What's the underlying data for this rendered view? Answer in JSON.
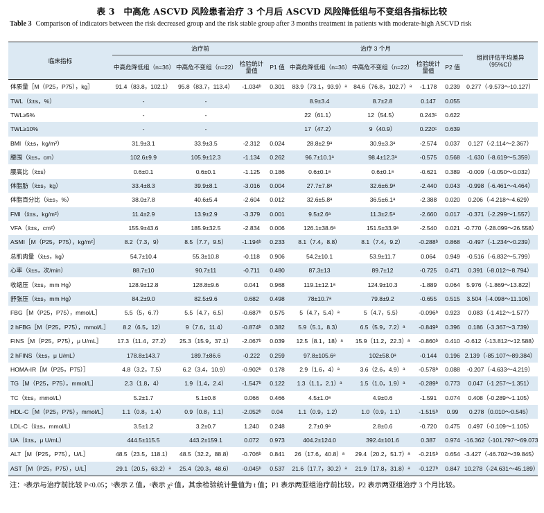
{
  "title_cn": "表 3　中高危 ASCVD 风险患者治疗 3 个月后 ASCVD 风险降低组与不变组各指标比较",
  "title_en_label": "Table 3",
  "title_en_text": "Comparison of indicators between the risk decreased group and the risk stable group after 3 months treatment in patients with moderate-high ASCVD risk",
  "header": {
    "indicator": "临床指标",
    "before": "治疗前",
    "after": "治疗 3 个月",
    "between": "组间评估平均差异（95%CI）",
    "dec_group": "中高危降低组（n=36）",
    "stable_group": "中高危不变组（n=22）",
    "test_stat": "检验统计量值",
    "p1": "P1 值",
    "p2": "P2 值"
  },
  "rows": [
    {
      "ind": "体质量［M（P25，P75），kg］",
      "b1": "91.4（83.8，102.1）",
      "b2": "95.8（83.7，113.4）",
      "bs": "-1.034ᵇ",
      "p1": "0.301",
      "a1": "83.9（73.1，93.9）ᵃ",
      "a2": "84.6（76.8，102.7）ᵃ",
      "as": "-1.178",
      "p2": "0.239",
      "ci": "0.277（-9.573～10.127）"
    },
    {
      "ind": "TWL（x̄±s，%）",
      "b1": "-",
      "b2": "-",
      "bs": "",
      "p1": "",
      "a1": "8.9±3.4",
      "a2": "8.7±2.8",
      "as": "0.147",
      "p2": "0.055",
      "ci": ""
    },
    {
      "ind": "TWL≥5%",
      "b1": "-",
      "b2": "-",
      "bs": "",
      "p1": "",
      "a1": "22（61.1）",
      "a2": "12（54.5）",
      "as": "0.243ᶜ",
      "p2": "0.622",
      "ci": ""
    },
    {
      "ind": "TWL≥10%",
      "b1": "-",
      "b2": "-",
      "bs": "",
      "p1": "",
      "a1": "17（47.2）",
      "a2": "9（40.9）",
      "as": "0.220ᶜ",
      "p2": "0.639",
      "ci": ""
    },
    {
      "ind": "BMI（x̄±s，kg/m²）",
      "b1": "31.9±3.1",
      "b2": "33.9±3.5",
      "bs": "-2.312",
      "p1": "0.024",
      "a1": "28.8±2.9ᵃ",
      "a2": "30.9±3.3ᵃ",
      "as": "-2.574",
      "p2": "0.037",
      "ci": "0.127（-2.114～2.367）"
    },
    {
      "ind": "腰围（x̄±s，cm）",
      "b1": "102.6±9.9",
      "b2": "105.9±12.3",
      "bs": "-1.134",
      "p1": "0.262",
      "a1": "96.7±10.1ᵃ",
      "a2": "98.4±12.3ᵃ",
      "as": "-0.575",
      "p2": "0.568",
      "ci": "-1.630（-8.619～5.359）"
    },
    {
      "ind": "腰高比（x̄±s）",
      "b1": "0.6±0.1",
      "b2": "0.6±0.1",
      "bs": "-1.125",
      "p1": "0.186",
      "a1": "0.6±0.1ᵃ",
      "a2": "0.6±0.1ᵃ",
      "as": "-0.621",
      "p2": "0.389",
      "ci": "-0.009（-0.050～0.032）"
    },
    {
      "ind": "体脂肪（x̄±s，kg）",
      "b1": "33.4±8.3",
      "b2": "39.9±8.1",
      "bs": "-3.016",
      "p1": "0.004",
      "a1": "27.7±7.8ᵃ",
      "a2": "32.6±6.9ᵃ",
      "as": "-2.440",
      "p2": "0.043",
      "ci": "-0.998（-6.461～4.464）"
    },
    {
      "ind": "体脂百分比（x̄±s，%）",
      "b1": "38.0±7.8",
      "b2": "40.6±5.4",
      "bs": "-2.604",
      "p1": "0.012",
      "a1": "32.6±5.8ᵃ",
      "a2": "36.5±6.1ᵃ",
      "as": "-2.388",
      "p2": "0.020",
      "ci": "0.206（-4.218～4.629）"
    },
    {
      "ind": "FMI（x̄±s，kg/m²）",
      "b1": "11.4±2.9",
      "b2": "13.9±2.9",
      "bs": "-3.379",
      "p1": "0.001",
      "a1": "9.5±2.6ᵃ",
      "a2": "11.3±2.5ᵃ",
      "as": "-2.660",
      "p2": "0.017",
      "ci": "-0.371（-2.299～1.557）"
    },
    {
      "ind": "VFA（x̄±s，cm²）",
      "b1": "155.9±43.6",
      "b2": "185.9±32.5",
      "bs": "-2.834",
      "p1": "0.006",
      "a1": "126.1±38.6ᵃ",
      "a2": "151.5±33.9ᵃ",
      "as": "-2.540",
      "p2": "0.021",
      "ci": "-0.770（-28.099～26.558）"
    },
    {
      "ind": "ASMI［M（P25，P75），kg/m²］",
      "b1": "8.2（7.3，9）",
      "b2": "8.5（7.7，9.5）",
      "bs": "-1.194ᵇ",
      "p1": "0.233",
      "a1": "8.1（7.4，8.8）",
      "a2": "8.1（7.4，9.2）",
      "as": "-0.288ᵇ",
      "p2": "0.868",
      "ci": "-0.497（-1.234～0.239）"
    },
    {
      "ind": "总肌肉量（x̄±s，kg）",
      "b1": "54.7±10.4",
      "b2": "55.3±10.8",
      "bs": "-0.118",
      "p1": "0.906",
      "a1": "54.2±10.1",
      "a2": "53.9±11.7",
      "as": "0.064",
      "p2": "0.949",
      "ci": "-0.516（-6.832～5.799）"
    },
    {
      "ind": "心率（x̄±s，次/min）",
      "b1": "88.7±10",
      "b2": "90.7±11",
      "bs": "-0.711",
      "p1": "0.480",
      "a1": "87.3±13",
      "a2": "89.7±12",
      "as": "-0.725",
      "p2": "0.471",
      "ci": "0.391（-8.012～8.794）"
    },
    {
      "ind": "收缩压（x̄±s，mm Hg）",
      "b1": "128.9±12.8",
      "b2": "128.8±9.6",
      "bs": "0.041",
      "p1": "0.968",
      "a1": "119.1±12.1ᵃ",
      "a2": "124.9±10.3",
      "as": "-1.889",
      "p2": "0.064",
      "ci": "5.976（-1.869～13.822）"
    },
    {
      "ind": "舒张压（x̄±s，mm Hg）",
      "b1": "84.2±9.0",
      "b2": "82.5±9.6",
      "bs": "0.682",
      "p1": "0.498",
      "a1": "78±10.7ᵃ",
      "a2": "79.8±9.2",
      "as": "-0.655",
      "p2": "0.515",
      "ci": "3.504（-4.098～11.106）"
    },
    {
      "ind": "FBG［M（P25，P75），mmol/L］",
      "b1": "5.5（5，6.7）",
      "b2": "5.5（4.7，6.5）",
      "bs": "-0.687ᵇ",
      "p1": "0.575",
      "a1": "5（4.7，5.4）ᵃ",
      "a2": "5（4.7，5.5）",
      "as": "-0.096ᵇ",
      "p2": "0.923",
      "ci": "0.083（-1.412～1.577）"
    },
    {
      "ind": "2 hFBG［M（P25，P75），mmol/L］",
      "b1": "8.2（6.5，12）",
      "b2": "9（7.6，11.4）",
      "bs": "-0.874ᵇ",
      "p1": "0.382",
      "a1": "5.9（5.1，8.3）",
      "a2": "6.5（5.9，7.2）ᵃ",
      "as": "-0.849ᵇ",
      "p2": "0.396",
      "ci": "0.186（-3.367～3.739）"
    },
    {
      "ind": "FINS［M（P25，P75），μ U/mL］",
      "b1": "17.3（11.4，27.2）",
      "b2": "25.3（15.9，37.1）",
      "bs": "-2.067ᵇ",
      "p1": "0.039",
      "a1": "12.5（8.1，18）ᵃ",
      "a2": "15.9（11.2，22.3）ᵃ",
      "as": "-0.860ᵇ",
      "p2": "0.410",
      "ci": "-0.612（-13.812～12.588）"
    },
    {
      "ind": "2 hFINS（x̄±s，μ U/mL）",
      "b1": "178.8±143.7",
      "b2": "189.7±86.6",
      "bs": "-0.222",
      "p1": "0.259",
      "a1": "97.8±105.6ᵃ",
      "a2": "102±58.0ᵃ",
      "as": "-0.144",
      "p2": "0.196",
      "ci": "2.139（-85.107～89.384）"
    },
    {
      "ind": "HOMA-IR［M（P25，P75）］",
      "b1": "4.8（3.2，7.5）",
      "b2": "6.2（3.4，10.9）",
      "bs": "-0.902ᵇ",
      "p1": "0.178",
      "a1": "2.9（1.6，4）ᵃ",
      "a2": "3.6（2.6，4.9）ᵃ",
      "as": "-0.578ᵇ",
      "p2": "0.088",
      "ci": "-0.207（-4.633～4.219）"
    },
    {
      "ind": "TG［M（P25，P75），mmol/L］",
      "b1": "2.3（1.8，4）",
      "b2": "1.9（1.4，2.4）",
      "bs": "-1.547ᵇ",
      "p1": "0.122",
      "a1": "1.3（1.1，2.1）ᵃ",
      "a2": "1.5（1.0，1.9）ᵃ",
      "as": "-0.289ᵇ",
      "p2": "0.773",
      "ci": "0.047（-1.257～1.351）"
    },
    {
      "ind": "TC（x̄±s，mmol/L）",
      "b1": "5.2±1.7",
      "b2": "5.1±0.8",
      "bs": "0.066",
      "p1": "0.466",
      "a1": "4.5±1.0ᵃ",
      "a2": "4.9±0.6",
      "as": "-1.591",
      "p2": "0.074",
      "ci": "0.408（-0.289～1.105）"
    },
    {
      "ind": "HDL-C［M（P25，P75），mmol/L］",
      "b1": "1.1（0.8，1.4）",
      "b2": "0.9（0.8，1.1）",
      "bs": "-2.052ᵇ",
      "p1": "0.04",
      "a1": "1.1（0.9，1.2）",
      "a2": "1.0（0.9，1.1）",
      "as": "-1.515ᵇ",
      "p2": "0.99",
      "ci": "0.278（0.010～0.545）"
    },
    {
      "ind": "LDL-C（x̄±s，mmol/L）",
      "b1": "3.5±1.2",
      "b2": "3.2±0.7",
      "bs": "1.240",
      "p1": "0.248",
      "a1": "2.7±0.9ᵃ",
      "a2": "2.8±0.6",
      "as": "-0.720",
      "p2": "0.475",
      "ci": "0.497（-0.109～1.105）"
    },
    {
      "ind": "UA（x̄±s，μ U/mL）",
      "b1": "444.5±115.5",
      "b2": "443.2±159.1",
      "bs": "0.072",
      "p1": "0.973",
      "a1": "404.2±124.0",
      "a2": "392.4±101.6",
      "as": "0.387",
      "p2": "0.974",
      "ci": "-16.362（-101.797～69.073）"
    },
    {
      "ind": "ALT［M（P25，P75），U/L］",
      "b1": "48.5（23.5，118.1）",
      "b2": "48.5（32.2，88.8）",
      "bs": "-0.706ᵇ",
      "p1": "0.841",
      "a1": "26（17.6，40.8）ᵃ",
      "a2": "29.4（20.2，51.7）ᵃ",
      "as": "-0.215ᵇ",
      "p2": "0.654",
      "ci": "-3.427（-46.702～39.845）"
    },
    {
      "ind": "AST［M（P25，P75），U/L］",
      "b1": "29.1（20.5，63.2）ᵃ",
      "b2": "25.4（20.3，48.6）",
      "bs": "-0.045ᵇ",
      "p1": "0.537",
      "a1": "21.6（17.7，30.2）ᵃ",
      "a2": "21.9（17.8，31.8）ᵃ",
      "as": "-0.127ᵇ",
      "p2": "0.847",
      "ci": "10.278（-24.631～45.189）"
    }
  ],
  "note": "注：ᵃ表示与治疗前比较 P<0.05；ᵇ表示 Z 值，ᶜ表示 χ² 值，其余检验统计量值为 t 值；P1 表示两亚组治疗前比较，P2 表示两亚组治疗 3 个月比较。"
}
